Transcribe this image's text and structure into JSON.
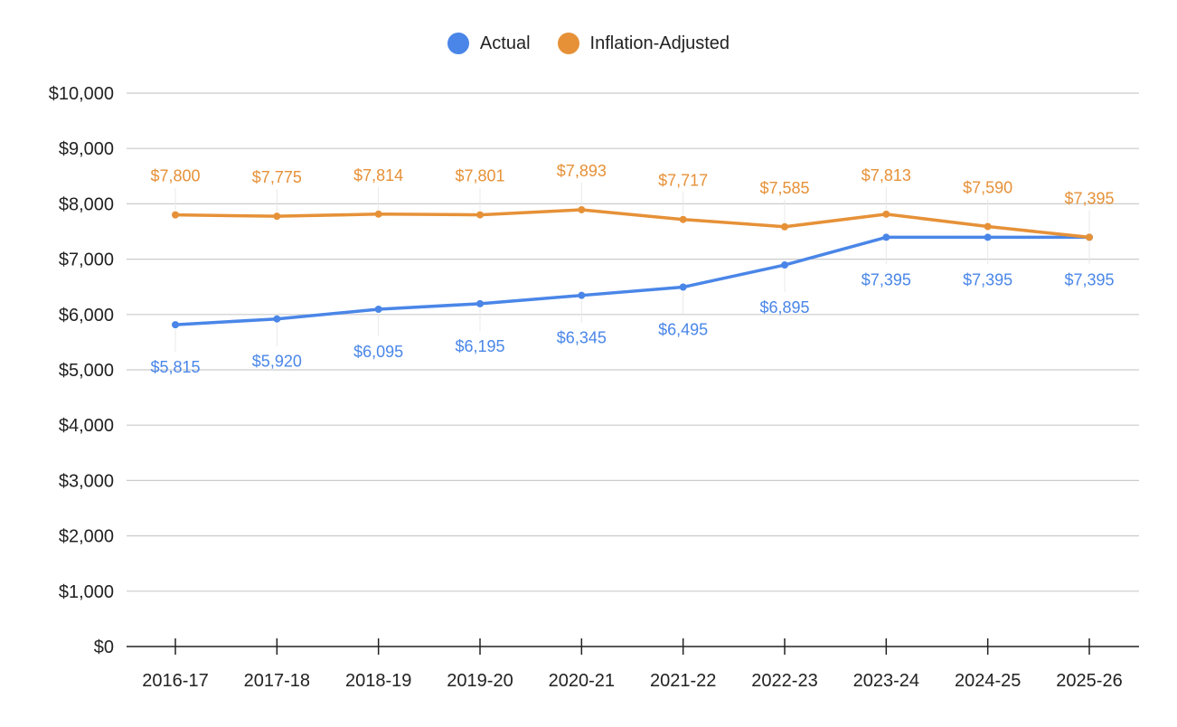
{
  "chart_data": {
    "type": "line",
    "title": "",
    "xlabel": "",
    "ylabel": "",
    "categories": [
      "2016-17",
      "2017-18",
      "2018-19",
      "2019-20",
      "2020-21",
      "2021-22",
      "2022-23",
      "2023-24",
      "2024-25",
      "2025-26"
    ],
    "ylim": [
      0,
      10000
    ],
    "yticks": [
      0,
      1000,
      2000,
      3000,
      4000,
      5000,
      6000,
      7000,
      8000,
      9000,
      10000
    ],
    "ytick_labels": [
      "$0",
      "$1,000",
      "$2,000",
      "$3,000",
      "$4,000",
      "$5,000",
      "$6,000",
      "$7,000",
      "$8,000",
      "$9,000",
      "$10,000"
    ],
    "grid": true,
    "legend_position": "top-center",
    "series": [
      {
        "name": "Actual",
        "color": "#4a86e8",
        "values": [
          5815,
          5920,
          6095,
          6195,
          6345,
          6495,
          6895,
          7395,
          7395,
          7395
        ],
        "labels": [
          "$5,815",
          "$5,920",
          "$6,095",
          "$6,195",
          "$6,345",
          "$6,495",
          "$6,895",
          "$7,395",
          "$7,395",
          "$7,395"
        ],
        "label_position": "below"
      },
      {
        "name": "Inflation-Adjusted",
        "color": "#e69138",
        "values": [
          7800,
          7775,
          7814,
          7801,
          7893,
          7717,
          7585,
          7813,
          7590,
          7395
        ],
        "labels": [
          "$7,800",
          "$7,775",
          "$7,814",
          "$7,801",
          "$7,893",
          "$7,717",
          "$7,585",
          "$7,813",
          "$7,590",
          "$7,395"
        ],
        "label_position": "above"
      }
    ]
  }
}
